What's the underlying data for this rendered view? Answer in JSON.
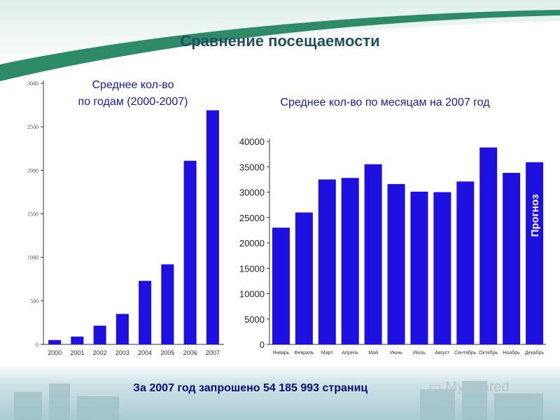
{
  "page": {
    "title": "Сравнение посещаемости",
    "footer": "За 2007 год запрошено 54 185 993 страниц",
    "watermark": "MyShared"
  },
  "colors": {
    "bar": "#1d10e0",
    "title": "#1f4f5f",
    "text": "#1a1a9e",
    "green": "#2e8b67"
  },
  "chart_data": [
    {
      "type": "bar",
      "title": "Среднее кол-во по годам (2000-2007)",
      "title_lines": [
        "Среднее кол-во",
        "по годам (2000-2007)"
      ],
      "categories": [
        "2000",
        "2001",
        "2002",
        "2003",
        "2004",
        "2005",
        "2006",
        "2007"
      ],
      "values": [
        50,
        90,
        215,
        350,
        730,
        920,
        2110,
        2690
      ],
      "ylim": [
        0,
        3000
      ],
      "yticks": [
        0,
        500,
        1000,
        1500,
        2000,
        2500,
        3000
      ],
      "grid": false
    },
    {
      "type": "bar",
      "title": "Среднее кол-во по месяцам на 2007 год",
      "categories": [
        "Январь",
        "Февраль",
        "Март",
        "Апрель",
        "Май",
        "Июнь",
        "Июль",
        "Август",
        "Сентябрь",
        "Октябрь",
        "Ноябрь",
        "Декабрь"
      ],
      "values": [
        23000,
        26000,
        32500,
        32800,
        35500,
        31600,
        30100,
        30000,
        32100,
        38800,
        33800,
        35900
      ],
      "ylim": [
        0,
        40000
      ],
      "yticks": [
        0,
        5000,
        10000,
        15000,
        20000,
        25000,
        30000,
        35000,
        40000
      ],
      "grid": false,
      "annotation": "Прогноз"
    }
  ]
}
